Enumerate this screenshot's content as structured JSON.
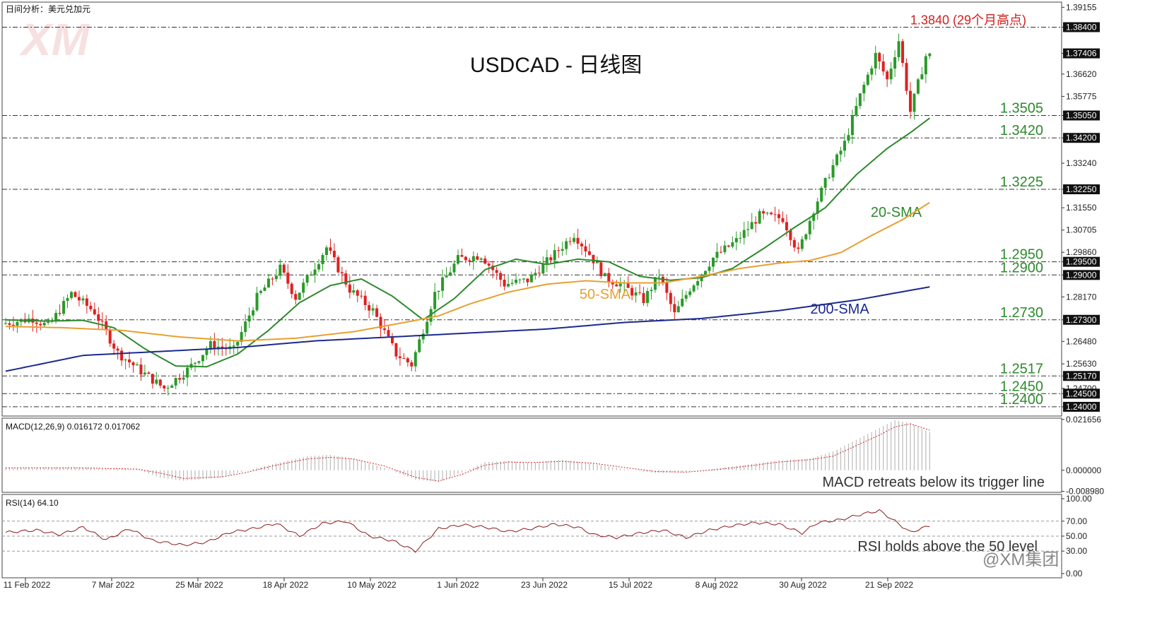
{
  "header": {
    "top_left": "日间分析：美元兑加元",
    "watermark": "XM",
    "brand": "@XM集团"
  },
  "chart_data": [
    {
      "type": "candlestick",
      "title": "USDCAD - 日线图",
      "ylim": [
        1.2365,
        1.3935
      ],
      "x_labels": [
        "11 Feb 2022",
        "7 Mar 2022",
        "25 Mar 2022",
        "18 Apr 2022",
        "10 May 2022",
        "1 Jun 2022",
        "23 Jun 2022",
        "15 Jul 2022",
        "8 Aug 2022",
        "30 Aug 2022",
        "21 Sep 2022"
      ],
      "y_ticks": [
        "1.39155",
        "1.38400",
        "1.37406",
        "1.36620",
        "1.35775",
        "1.35050",
        "1.34200",
        "1.33240",
        "1.32250",
        "1.31550",
        "1.30705",
        "1.29860",
        "1.29500",
        "1.29000",
        "1.28170",
        "1.27300",
        "1.26480",
        "1.25630",
        "1.25170",
        "1.24700",
        "1.24500",
        "1.24000"
      ],
      "highlighted_ticks": [
        "1.38400",
        "1.37406",
        "1.35050",
        "1.34200",
        "1.32250",
        "1.29500",
        "1.29000",
        "1.27300",
        "1.25170",
        "1.24500",
        "1.24000"
      ],
      "levels": [
        {
          "value": 1.384,
          "label": "1.3840 (29个月高点)",
          "color": "#d42020"
        },
        {
          "value": 1.3505,
          "label": "1.3505",
          "color": "#2d8a2d"
        },
        {
          "value": 1.342,
          "label": "1.3420",
          "color": "#2d8a2d"
        },
        {
          "value": 1.3225,
          "label": "1.3225",
          "color": "#2d8a2d"
        },
        {
          "value": 1.295,
          "label": "1.2950",
          "color": "#2d8a2d"
        },
        {
          "value": 1.29,
          "label": "1.2900",
          "color": "#2d8a2d"
        },
        {
          "value": 1.273,
          "label": "1.2730",
          "color": "#2d8a2d"
        },
        {
          "value": 1.2517,
          "label": "1.2517",
          "color": "#2d8a2d"
        },
        {
          "value": 1.245,
          "label": "1.2450",
          "color": "#2d8a2d"
        },
        {
          "value": 1.24,
          "label": "1.2400",
          "color": "#2d8a2d"
        }
      ],
      "price_anchors": [
        [
          0,
          1.2715
        ],
        [
          8,
          1.2735
        ],
        [
          12,
          1.2705
        ],
        [
          18,
          1.283
        ],
        [
          24,
          1.276
        ],
        [
          30,
          1.2605
        ],
        [
          36,
          1.2535
        ],
        [
          42,
          1.247
        ],
        [
          48,
          1.254
        ],
        [
          54,
          1.2635
        ],
        [
          60,
          1.2615
        ],
        [
          66,
          1.2815
        ],
        [
          72,
          1.2925
        ],
        [
          76,
          1.2815
        ],
        [
          84,
          1.3005
        ],
        [
          90,
          1.2845
        ],
        [
          96,
          1.2765
        ],
        [
          102,
          1.26
        ],
        [
          106,
          1.256
        ],
        [
          112,
          1.283
        ],
        [
          118,
          1.296
        ],
        [
          124,
          1.2975
        ],
        [
          130,
          1.2865
        ],
        [
          136,
          1.288
        ],
        [
          142,
          1.2965
        ],
        [
          148,
          1.3055
        ],
        [
          152,
          1.298
        ],
        [
          156,
          1.289
        ],
        [
          160,
          1.2865
        ],
        [
          166,
          1.2805
        ],
        [
          170,
          1.29
        ],
        [
          174,
          1.275
        ],
        [
          178,
          1.285
        ],
        [
          184,
          1.2965
        ],
        [
          190,
          1.303
        ],
        [
          196,
          1.3125
        ],
        [
          202,
          1.3115
        ],
        [
          206,
          1.2985
        ],
        [
          210,
          1.315
        ],
        [
          214,
          1.3285
        ],
        [
          218,
          1.34
        ],
        [
          222,
          1.358
        ],
        [
          226,
          1.3735
        ],
        [
          229,
          1.364
        ],
        [
          232,
          1.379
        ],
        [
          235,
          1.352
        ],
        [
          239,
          1.3731
        ]
      ],
      "candles_count": 240,
      "series": [
        {
          "name": "20-SMA",
          "color": "#2d8a2d",
          "label_pos": [
            1268,
            297
          ],
          "values": [
            [
              0,
              1.273
            ],
            [
              10,
              1.2725
            ],
            [
              20,
              1.2728
            ],
            [
              28,
              1.27
            ],
            [
              36,
              1.262
            ],
            [
              44,
              1.2555
            ],
            [
              52,
              1.2552
            ],
            [
              60,
              1.26
            ],
            [
              68,
              1.269
            ],
            [
              76,
              1.2795
            ],
            [
              84,
              1.286
            ],
            [
              92,
              1.2885
            ],
            [
              100,
              1.282
            ],
            [
              108,
              1.273
            ],
            [
              116,
              1.281
            ],
            [
              124,
              1.292
            ],
            [
              132,
              1.296
            ],
            [
              140,
              1.294
            ],
            [
              148,
              1.296
            ],
            [
              156,
              1.295
            ],
            [
              164,
              1.2895
            ],
            [
              172,
              1.288
            ],
            [
              180,
              1.289
            ],
            [
              188,
              1.2925
            ],
            [
              196,
              1.3
            ],
            [
              204,
              1.308
            ],
            [
              212,
              1.3155
            ],
            [
              220,
              1.328
            ],
            [
              228,
              1.338
            ],
            [
              234,
              1.344
            ],
            [
              239,
              1.3495
            ]
          ]
        },
        {
          "name": "50-SMA",
          "color": "#e8a030",
          "label_pos": [
            856,
            413
          ],
          "values": [
            [
              0,
              1.2705
            ],
            [
              15,
              1.27
            ],
            [
              30,
              1.269
            ],
            [
              45,
              1.2665
            ],
            [
              60,
              1.265
            ],
            [
              75,
              1.266
            ],
            [
              90,
              1.2685
            ],
            [
              105,
              1.2725
            ],
            [
              112,
              1.2745
            ],
            [
              120,
              1.279
            ],
            [
              130,
              1.2835
            ],
            [
              140,
              1.2865
            ],
            [
              150,
              1.2878
            ],
            [
              160,
              1.287
            ],
            [
              170,
              1.287
            ],
            [
              180,
              1.2895
            ],
            [
              190,
              1.2925
            ],
            [
              200,
              1.2945
            ],
            [
              208,
              1.2955
            ],
            [
              216,
              1.2985
            ],
            [
              224,
              1.305
            ],
            [
              232,
              1.311
            ],
            [
              239,
              1.3175
            ]
          ]
        },
        {
          "name": "200-SMA",
          "color": "#1c2a8c",
          "label_pos": [
            1188,
            434
          ],
          "values": [
            [
              0,
              1.2535
            ],
            [
              20,
              1.2595
            ],
            [
              40,
              1.261
            ],
            [
              60,
              1.2625
            ],
            [
              80,
              1.265
            ],
            [
              100,
              1.2665
            ],
            [
              120,
              1.268
            ],
            [
              140,
              1.2695
            ],
            [
              160,
              1.272
            ],
            [
              180,
              1.2735
            ],
            [
              200,
              1.2765
            ],
            [
              220,
              1.2805
            ],
            [
              239,
              1.2855
            ]
          ]
        }
      ]
    },
    {
      "type": "histogram",
      "title": "MACD(12,26,9) 0.016172 0.017062",
      "annotation": "MACD retreats below its trigger line",
      "y_ticks": [
        "0.021656",
        "0.000000",
        "-0.008980"
      ],
      "ylim": [
        -0.0094,
        0.0222
      ],
      "series": [
        {
          "name": "MACD",
          "color": "#bbbbbb",
          "values": [
            [
              0,
              0.001
            ],
            [
              20,
              0.0012
            ],
            [
              34,
              0.0003
            ],
            [
              40,
              -0.0032
            ],
            [
              46,
              -0.0045
            ],
            [
              56,
              -0.003
            ],
            [
              62,
              -0.0002
            ],
            [
              70,
              0.003
            ],
            [
              78,
              0.006
            ],
            [
              84,
              0.0066
            ],
            [
              90,
              0.005
            ],
            [
              98,
              0.001
            ],
            [
              106,
              -0.004
            ],
            [
              112,
              -0.005
            ],
            [
              118,
              -0.001
            ],
            [
              124,
              0.0035
            ],
            [
              130,
              0.004
            ],
            [
              136,
              0.0033
            ],
            [
              144,
              0.0045
            ],
            [
              152,
              0.0028
            ],
            [
              160,
              0.0005
            ],
            [
              168,
              -0.0012
            ],
            [
              176,
              -0.0008
            ],
            [
              184,
              0.0008
            ],
            [
              192,
              0.0025
            ],
            [
              200,
              0.0042
            ],
            [
              208,
              0.005
            ],
            [
              214,
              0.008
            ],
            [
              220,
              0.013
            ],
            [
              226,
              0.018
            ],
            [
              230,
              0.0214
            ],
            [
              234,
              0.02
            ],
            [
              239,
              0.0162
            ]
          ]
        },
        {
          "name": "Signal",
          "color": "#cc2a2a",
          "values": [
            [
              0,
              0.001
            ],
            [
              20,
              0.001
            ],
            [
              34,
              0.0005
            ],
            [
              40,
              -0.0012
            ],
            [
              46,
              -0.0035
            ],
            [
              56,
              -0.0028
            ],
            [
              62,
              -0.001
            ],
            [
              70,
              0.0022
            ],
            [
              78,
              0.0048
            ],
            [
              84,
              0.0055
            ],
            [
              90,
              0.0048
            ],
            [
              98,
              0.0018
            ],
            [
              106,
              -0.003
            ],
            [
              112,
              -0.0046
            ],
            [
              118,
              -0.0018
            ],
            [
              124,
              0.0022
            ],
            [
              130,
              0.0035
            ],
            [
              136,
              0.0033
            ],
            [
              144,
              0.0038
            ],
            [
              152,
              0.003
            ],
            [
              160,
              0.0012
            ],
            [
              168,
              -0.0005
            ],
            [
              176,
              -0.0008
            ],
            [
              184,
              0.0003
            ],
            [
              192,
              0.0018
            ],
            [
              200,
              0.0035
            ],
            [
              208,
              0.0045
            ],
            [
              214,
              0.006
            ],
            [
              220,
              0.0105
            ],
            [
              226,
              0.015
            ],
            [
              230,
              0.0185
            ],
            [
              234,
              0.0198
            ],
            [
              239,
              0.0171
            ]
          ]
        }
      ]
    },
    {
      "type": "line",
      "title": "RSI(14) 64.10",
      "annotation": "RSI holds above the 50 level",
      "y_ticks": [
        "100.00",
        "70.00",
        "50.00",
        "30.00",
        "0.00"
      ],
      "ylim": [
        0,
        100
      ],
      "series": [
        {
          "name": "RSI",
          "color": "#8b1a1a",
          "values": [
            [
              0,
              55
            ],
            [
              8,
              58
            ],
            [
              14,
              52
            ],
            [
              20,
              62
            ],
            [
              26,
              45
            ],
            [
              32,
              60
            ],
            [
              38,
              44
            ],
            [
              46,
              38
            ],
            [
              52,
              42
            ],
            [
              58,
              55
            ],
            [
              64,
              60
            ],
            [
              70,
              67
            ],
            [
              76,
              50
            ],
            [
              82,
              67
            ],
            [
              88,
              70
            ],
            [
              94,
              50
            ],
            [
              100,
              44
            ],
            [
              106,
              30
            ],
            [
              112,
              60
            ],
            [
              118,
              65
            ],
            [
              124,
              62
            ],
            [
              130,
              56
            ],
            [
              136,
              60
            ],
            [
              142,
              66
            ],
            [
              148,
              62
            ],
            [
              152,
              52
            ],
            [
              158,
              48
            ],
            [
              164,
              54
            ],
            [
              170,
              58
            ],
            [
              176,
              48
            ],
            [
              182,
              58
            ],
            [
              188,
              64
            ],
            [
              194,
              68
            ],
            [
              200,
              66
            ],
            [
              206,
              54
            ],
            [
              210,
              68
            ],
            [
              216,
              72
            ],
            [
              222,
              80
            ],
            [
              226,
              84
            ],
            [
              230,
              70
            ],
            [
              234,
              55
            ],
            [
              239,
              64
            ]
          ]
        }
      ]
    }
  ]
}
